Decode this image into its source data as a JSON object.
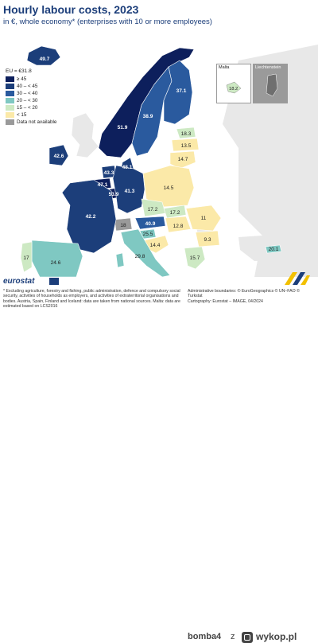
{
  "title": "Hourly labour costs, 2023",
  "subtitle": "in €, whole economy* (enterprises with 10 or more employees)",
  "legend": {
    "title": "EU = €31.8",
    "items": [
      {
        "label": "≥ 45",
        "color": "#0d1f5c"
      },
      {
        "label": "40 – < 45",
        "color": "#1c3e7a"
      },
      {
        "label": "30 – < 40",
        "color": "#2a5a9e"
      },
      {
        "label": "20 – < 30",
        "color": "#7fc8c2"
      },
      {
        "label": "15 – < 20",
        "color": "#cde9c3"
      },
      {
        "label": "< 15",
        "color": "#fbe9a8"
      },
      {
        "label": "Data not available",
        "color": "#9a9a9a"
      }
    ]
  },
  "insets": {
    "malta": "Malta",
    "malta_value": "18.2",
    "liechtenstein": "Liechtenstein"
  },
  "country_values": {
    "iceland": "49.7",
    "norway": "51.9",
    "sweden": "38.9",
    "finland": "37.1",
    "estonia": "18.3",
    "latvia": "13.5",
    "lithuania": "14.7",
    "denmark": "48.1",
    "ireland": "42.6",
    "netherlands": "43.3",
    "belgium": "47.1",
    "luxembourg": "53.9",
    "germany": "41.3",
    "poland": "14.5",
    "czechia": "17.2",
    "slovakia": "17.2",
    "austria": "40.9",
    "hungary": "12.8",
    "romania": "11",
    "bulgaria": "9.3",
    "slovenia": "25.5",
    "croatia": "14.4",
    "france": "42.2",
    "italy": "29.8",
    "spain": "24.6",
    "portugal": "17",
    "greece": "15.7",
    "cyprus": "20.1",
    "malta": "18.2",
    "switzerland": "18"
  },
  "source_logo": "eurostat",
  "footnote": "* Excluding agriculture, forestry and fishing, public administration, defence and compulsory social security, activities of households as employers, and activities of extraterritorial organisations and bodies. Austria, Spain, Finland and Iceland: data are taken from national sources. Malta: data are estimated based on LCS2016",
  "credits": [
    "Administrative boundaries: © EuroGeographics © UN–FAO © Turkstat",
    "Cartography: Eurostat – IMAGE, 04/2024"
  ],
  "watermark": {
    "user": "bomba4",
    "sep": "z",
    "site": "wykop.pl"
  },
  "colors": {
    "sea": "#ffffff",
    "land_other": "#e8e8e8",
    "border": "#ffffff",
    "title": "#1c3e7a"
  }
}
